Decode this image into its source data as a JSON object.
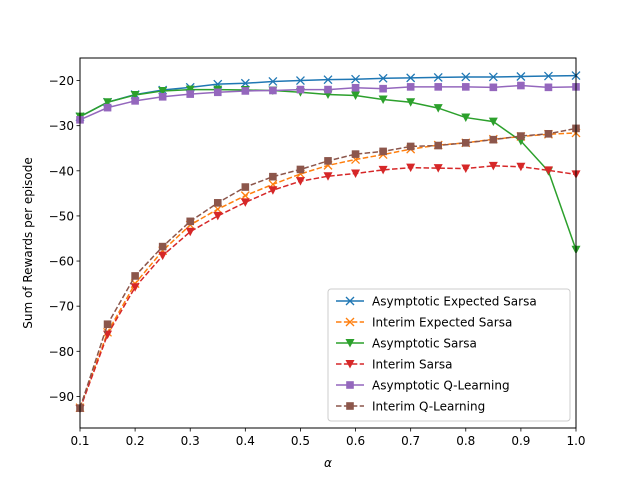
{
  "chart_data": {
    "type": "line",
    "title": "",
    "xlabel": "α",
    "ylabel": "Sum of Rewards per episode",
    "xlim": [
      0.1,
      1.0
    ],
    "ylim": [
      -97,
      -15
    ],
    "x_ticks": [
      0.1,
      0.2,
      0.3,
      0.4,
      0.5,
      0.6,
      0.7,
      0.8,
      0.9,
      1.0
    ],
    "x_tick_labels": [
      "0.1",
      "0.2",
      "0.3",
      "0.4",
      "0.5",
      "0.6",
      "0.7",
      "0.8",
      "0.9",
      "1.0"
    ],
    "y_ticks": [
      -90,
      -80,
      -70,
      -60,
      -50,
      -40,
      -30,
      -20
    ],
    "y_tick_labels": [
      "−90",
      "−80",
      "−70",
      "−60",
      "−50",
      "−40",
      "−30",
      "−20"
    ],
    "grid": false,
    "legend_position": "lower-right",
    "x": [
      0.1,
      0.15,
      0.2,
      0.25,
      0.3,
      0.35,
      0.4,
      0.45,
      0.5,
      0.55,
      0.6,
      0.65,
      0.7,
      0.75,
      0.8,
      0.85,
      0.9,
      0.95,
      1.0
    ],
    "series": [
      {
        "name": "Asymptotic Expected Sarsa",
        "color": "#1f77b4",
        "linestyle": "solid",
        "marker": "x",
        "values": [
          -28.0,
          -24.8,
          -23.1,
          -22.1,
          -21.5,
          -20.8,
          -20.6,
          -20.2,
          -20.0,
          -19.8,
          -19.7,
          -19.5,
          -19.4,
          -19.3,
          -19.2,
          -19.2,
          -19.1,
          -19.0,
          -18.9
        ]
      },
      {
        "name": "Interim Expected Sarsa",
        "color": "#ff7f0e",
        "linestyle": "dashed",
        "marker": "x",
        "values": [
          -92.5,
          -75.8,
          -65.0,
          -57.7,
          -52.0,
          -48.5,
          -45.5,
          -43.0,
          -40.7,
          -38.8,
          -37.5,
          -36.4,
          -35.2,
          -34.3,
          -33.8,
          -33.0,
          -32.4,
          -31.9,
          -31.6
        ]
      },
      {
        "name": "Asymptotic Sarsa",
        "color": "#2ca02c",
        "linestyle": "solid",
        "marker": "triangle-down",
        "values": [
          -28.0,
          -24.8,
          -23.2,
          -22.3,
          -22.0,
          -22.0,
          -22.1,
          -22.2,
          -22.6,
          -23.1,
          -23.3,
          -24.2,
          -24.8,
          -26.1,
          -28.2,
          -29.1,
          -33.4,
          -40.1,
          -57.5
        ]
      },
      {
        "name": "Interim Sarsa",
        "color": "#d62728",
        "linestyle": "dashed",
        "marker": "triangle-down",
        "values": [
          -92.8,
          -76.3,
          -65.8,
          -58.8,
          -53.5,
          -50.0,
          -47.0,
          -44.3,
          -42.3,
          -41.2,
          -40.6,
          -39.8,
          -39.3,
          -39.4,
          -39.5,
          -38.9,
          -39.1,
          -39.9,
          -40.8
        ]
      },
      {
        "name": "Asymptotic Q-Learning",
        "color": "#9467bd",
        "linestyle": "solid",
        "marker": "square",
        "values": [
          -28.7,
          -26.0,
          -24.5,
          -23.6,
          -23.0,
          -22.6,
          -22.3,
          -22.2,
          -22.0,
          -22.0,
          -21.6,
          -21.8,
          -21.4,
          -21.4,
          -21.4,
          -21.5,
          -21.1,
          -21.5,
          -21.4
        ]
      },
      {
        "name": "Interim Q-Learning",
        "color": "#8c564b",
        "linestyle": "dashed",
        "marker": "square",
        "values": [
          -92.6,
          -74.0,
          -63.3,
          -56.8,
          -51.2,
          -47.1,
          -43.6,
          -41.3,
          -39.7,
          -37.8,
          -36.3,
          -35.7,
          -34.6,
          -34.4,
          -33.8,
          -33.1,
          -32.3,
          -31.8,
          -30.6
        ]
      }
    ]
  }
}
